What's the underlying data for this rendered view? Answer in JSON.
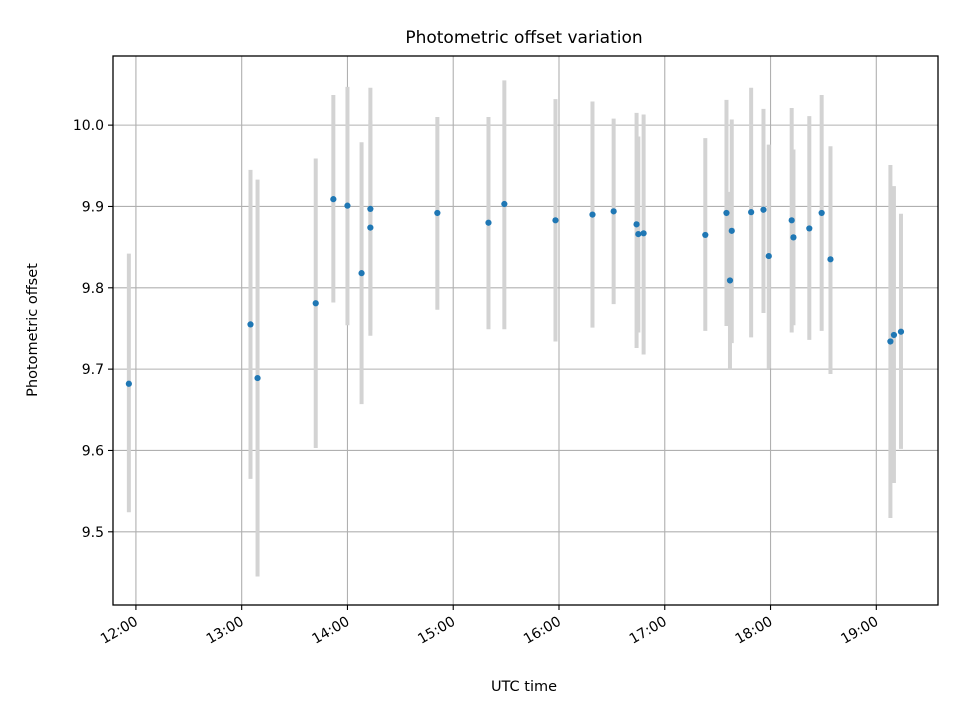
{
  "chart_data": {
    "type": "scatter",
    "title": "Photometric offset variation",
    "xlabel": "UTC time",
    "ylabel": "Photometric offset",
    "x_axis_type": "time",
    "xlim": [
      "11:47",
      "19:35"
    ],
    "ylim": [
      9.41,
      10.085
    ],
    "x_ticks": [
      "12:00",
      "13:00",
      "14:00",
      "15:00",
      "16:00",
      "17:00",
      "18:00",
      "19:00"
    ],
    "y_ticks": [
      9.5,
      9.6,
      9.7,
      9.8,
      9.9,
      10.0
    ],
    "grid": true,
    "legend": "none",
    "colors": {
      "point": "#1f77b4",
      "errorbar": "#d3d3d3",
      "grid": "#b0b0b0"
    },
    "points": [
      {
        "t": "11:56",
        "y": 9.682,
        "lo": 9.524,
        "hi": 9.842
      },
      {
        "t": "13:05",
        "y": 9.755,
        "lo": 9.565,
        "hi": 9.945
      },
      {
        "t": "13:09",
        "y": 9.689,
        "lo": 9.445,
        "hi": 9.933
      },
      {
        "t": "13:42",
        "y": 9.781,
        "lo": 9.603,
        "hi": 9.959
      },
      {
        "t": "13:52",
        "y": 9.909,
        "lo": 9.782,
        "hi": 10.037
      },
      {
        "t": "14:00",
        "y": 9.901,
        "lo": 9.754,
        "hi": 10.047
      },
      {
        "t": "14:08",
        "y": 9.818,
        "lo": 9.657,
        "hi": 9.979
      },
      {
        "t": "14:13",
        "y": 9.897,
        "lo": 9.748,
        "hi": 10.046
      },
      {
        "t": "14:13",
        "y": 9.874,
        "lo": 9.741,
        "hi": 10.006
      },
      {
        "t": "14:51",
        "y": 9.892,
        "lo": 9.773,
        "hi": 10.01
      },
      {
        "t": "15:20",
        "y": 9.88,
        "lo": 9.749,
        "hi": 10.01
      },
      {
        "t": "15:29",
        "y": 9.903,
        "lo": 9.749,
        "hi": 10.055
      },
      {
        "t": "15:58",
        "y": 9.883,
        "lo": 9.734,
        "hi": 10.032
      },
      {
        "t": "16:19",
        "y": 9.89,
        "lo": 9.751,
        "hi": 10.029
      },
      {
        "t": "16:31",
        "y": 9.894,
        "lo": 9.78,
        "hi": 10.008
      },
      {
        "t": "16:44",
        "y": 9.878,
        "lo": 9.726,
        "hi": 10.015
      },
      {
        "t": "16:45",
        "y": 9.866,
        "lo": 9.745,
        "hi": 9.986
      },
      {
        "t": "16:48",
        "y": 9.867,
        "lo": 9.718,
        "hi": 10.013
      },
      {
        "t": "17:23",
        "y": 9.865,
        "lo": 9.747,
        "hi": 9.984
      },
      {
        "t": "17:35",
        "y": 9.892,
        "lo": 9.753,
        "hi": 10.031
      },
      {
        "t": "17:37",
        "y": 9.809,
        "lo": 9.7,
        "hi": 9.918
      },
      {
        "t": "17:38",
        "y": 9.87,
        "lo": 9.732,
        "hi": 10.007
      },
      {
        "t": "17:49",
        "y": 9.893,
        "lo": 9.739,
        "hi": 10.046
      },
      {
        "t": "17:56",
        "y": 9.896,
        "lo": 9.769,
        "hi": 10.02
      },
      {
        "t": "17:59",
        "y": 9.839,
        "lo": 9.701,
        "hi": 9.976
      },
      {
        "t": "18:12",
        "y": 9.883,
        "lo": 9.745,
        "hi": 10.021
      },
      {
        "t": "18:13",
        "y": 9.862,
        "lo": 9.754,
        "hi": 9.97
      },
      {
        "t": "18:22",
        "y": 9.873,
        "lo": 9.736,
        "hi": 10.011
      },
      {
        "t": "18:29",
        "y": 9.892,
        "lo": 9.747,
        "hi": 10.037
      },
      {
        "t": "18:34",
        "y": 9.835,
        "lo": 9.694,
        "hi": 9.974
      },
      {
        "t": "19:08",
        "y": 9.734,
        "lo": 9.517,
        "hi": 9.951
      },
      {
        "t": "19:10",
        "y": 9.742,
        "lo": 9.56,
        "hi": 9.925
      },
      {
        "t": "19:14",
        "y": 9.746,
        "lo": 9.602,
        "hi": 9.891
      }
    ]
  }
}
